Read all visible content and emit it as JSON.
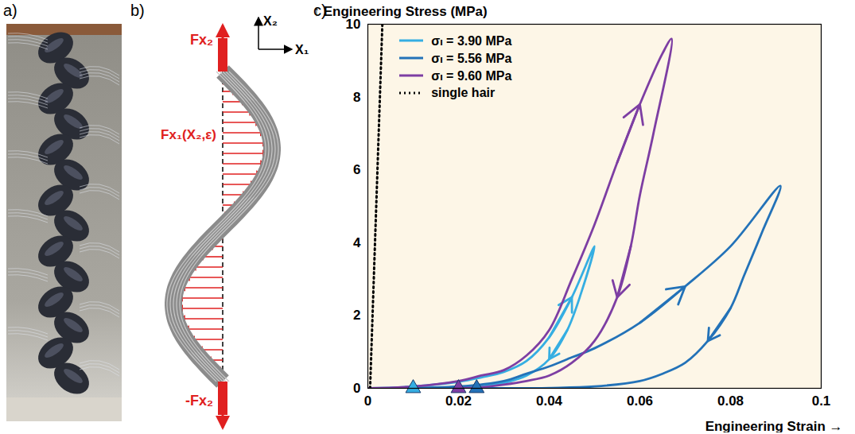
{
  "panels": [
    {
      "panel_label": "a)"
    },
    {
      "panel_label": "b)",
      "axes": [
        "X₂",
        "X₁"
      ],
      "top_force": "Fx₂",
      "distributed_force": "Fx₁(X₂,ε)",
      "bottom_force": "-Fx₂"
    }
  ],
  "chart_data": {
    "panel_label": "c)",
    "type": "line",
    "xlabel": "Engineering Strain",
    "ylabel": "Engineering Stress (MPa)",
    "xlim": [
      0,
      0.1
    ],
    "xticks": [
      0,
      0.02,
      0.04,
      0.06,
      0.08,
      0.1
    ],
    "ylim": [
      0,
      10
    ],
    "yticks": [
      0,
      2,
      4,
      6,
      8,
      10
    ],
    "legend": "upper left",
    "series": [
      {
        "name": "σₗ = 3.90 MPa",
        "color": "#35aee2",
        "line_style": "solid",
        "marker": "triangle",
        "unloaded_strain": 0.01,
        "x": [
          0,
          0.01,
          0.02,
          0.025,
          0.03,
          0.035,
          0.04,
          0.045,
          0.05,
          0.047,
          0.044,
          0.04,
          0.035,
          0.03,
          0.025,
          0.02,
          0.015,
          0.01
        ],
        "values": [
          0,
          0.05,
          0.18,
          0.3,
          0.45,
          0.75,
          1.4,
          2.5,
          3.9,
          2.6,
          1.6,
          0.8,
          0.35,
          0.15,
          0.05,
          0.02,
          0,
          0
        ]
      },
      {
        "name": "σₗ = 5.56 MPa",
        "color": "#2372b8",
        "line_style": "solid",
        "marker": "triangle",
        "unloaded_strain": 0.024,
        "x": [
          0,
          0.02,
          0.03,
          0.035,
          0.04,
          0.045,
          0.05,
          0.06,
          0.07,
          0.08,
          0.091,
          0.087,
          0.083,
          0.08,
          0.075,
          0.07,
          0.065,
          0.06,
          0.05,
          0.04,
          0.03,
          0.024
        ],
        "values": [
          0,
          0.05,
          0.2,
          0.4,
          0.6,
          0.85,
          1.1,
          1.8,
          2.8,
          3.9,
          5.56,
          4.3,
          3.1,
          2.2,
          1.3,
          0.7,
          0.4,
          0.2,
          0.05,
          0.01,
          0,
          0
        ]
      },
      {
        "name": "σₗ = 9.60 MPa",
        "color": "#7d3ea3",
        "line_style": "solid",
        "marker": "triangle",
        "unloaded_strain": 0.02,
        "x": [
          0,
          0.01,
          0.02,
          0.025,
          0.03,
          0.035,
          0.04,
          0.045,
          0.05,
          0.055,
          0.06,
          0.065,
          0.067,
          0.063,
          0.06,
          0.058,
          0.055,
          0.05,
          0.045,
          0.04,
          0.035,
          0.03,
          0.025,
          0.02
        ],
        "values": [
          0,
          0.05,
          0.2,
          0.35,
          0.5,
          0.9,
          1.6,
          3.0,
          4.5,
          6.2,
          7.8,
          9.2,
          9.6,
          7.0,
          5.3,
          3.9,
          2.5,
          1.3,
          0.7,
          0.35,
          0.2,
          0.1,
          0.03,
          0
        ]
      },
      {
        "name": "single hair",
        "color": "#000000",
        "line_style": "dotted",
        "x": [
          0.0005,
          0.0032
        ],
        "values": [
          0,
          10
        ]
      }
    ]
  }
}
